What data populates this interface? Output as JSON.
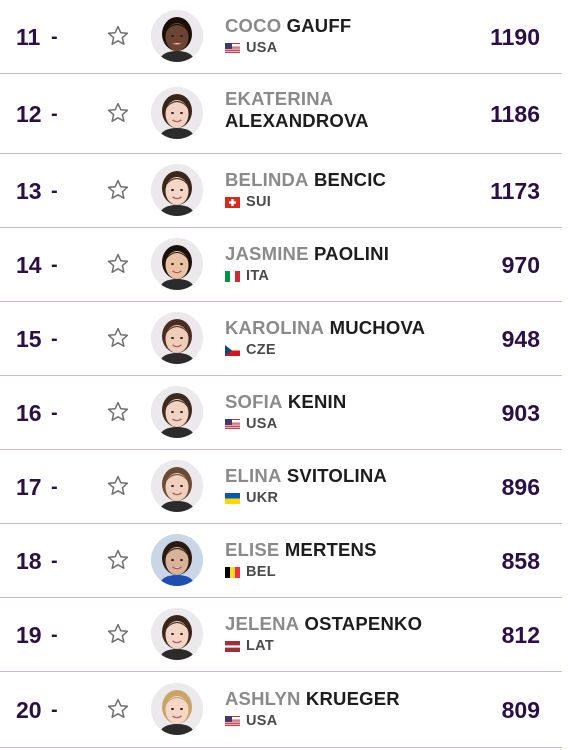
{
  "players": [
    {
      "rank": "11",
      "move": "-",
      "first": "COCO",
      "last": "GAUFF",
      "country": "USA",
      "points": "1190",
      "flag": "us"
    },
    {
      "rank": "12",
      "move": "-",
      "first": "EKATERINA",
      "last": "ALEXANDROVA",
      "country": "",
      "points": "1186",
      "flag": ""
    },
    {
      "rank": "13",
      "move": "-",
      "first": "BELINDA",
      "last": "BENCIC",
      "country": "SUI",
      "points": "1173",
      "flag": "ch"
    },
    {
      "rank": "14",
      "move": "-",
      "first": "JASMINE",
      "last": "PAOLINI",
      "country": "ITA",
      "points": "970",
      "flag": "it"
    },
    {
      "rank": "15",
      "move": "-",
      "first": "KAROLINA",
      "last": "MUCHOVA",
      "country": "CZE",
      "points": "948",
      "flag": "cz"
    },
    {
      "rank": "16",
      "move": "-",
      "first": "SOFIA",
      "last": "KENIN",
      "country": "USA",
      "points": "903",
      "flag": "us"
    },
    {
      "rank": "17",
      "move": "-",
      "first": "ELINA",
      "last": "SVITOLINA",
      "country": "UKR",
      "points": "896",
      "flag": "ua"
    },
    {
      "rank": "18",
      "move": "-",
      "first": "ELISE",
      "last": "MERTENS",
      "country": "BEL",
      "points": "858",
      "flag": "be"
    },
    {
      "rank": "19",
      "move": "-",
      "first": "JELENA",
      "last": "OSTAPENKO",
      "country": "LAT",
      "points": "812",
      "flag": "lv"
    },
    {
      "rank": "20",
      "move": "-",
      "first": "ASHLYN",
      "last": "KRUEGER",
      "country": "USA",
      "points": "809",
      "flag": "us"
    }
  ],
  "colors": {
    "rank": "#2a1046",
    "divider": "#c9b8d8",
    "first_name": "#8a8a8a",
    "last_name": "#1d1d1d"
  }
}
